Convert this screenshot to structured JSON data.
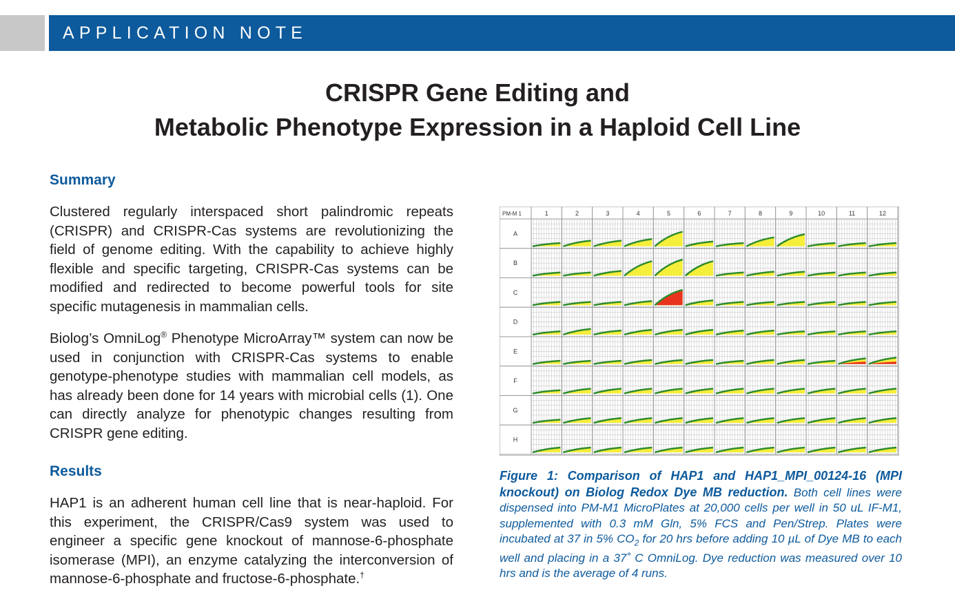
{
  "header": {
    "banner_label": "APPLICATION NOTE"
  },
  "title": {
    "line1": "CRISPR Gene Editing and",
    "line2": "Metabolic Phenotype Expression in a Haploid Cell Line"
  },
  "summary": {
    "heading": "Summary",
    "paragraph1": "Clustered regularly interspaced short palindromic repeats (CRISPR) and CRISPR-Cas systems   are revolutionizing the field of genome editing. With the capability to achieve highly flexible and specific targeting, CRISPR-Cas systems can be modified and redirected to become powerful tools for site specific mutagenesis in mammalian cells.",
    "paragraph2_before_sup": "Biolog’s OmniLog",
    "paragraph2_sup": "®",
    "paragraph2_after_sup": " Phenotype MicroArray™ system can now be used in conjunction with CRISPR-Cas systems to enable genotype-phenotype studies with mammalian cell models, as has already been done for 14 years with microbial cells (1). One can directly analyze for phenotypic changes resulting from CRISPR gene editing."
  },
  "results": {
    "heading": "Results",
    "paragraph1": "HAP1 is an adherent human cell line that is near-haploid. For this experiment, the CRISPR/Cas9 system was used to engineer a specific gene knockout of mannose-6-phosphate isomerase (MPI), an enzyme catalyzing the interconversion of mannose-6-phosphate and fructose-6-phosphate.",
    "paragraph1_sup": "†"
  },
  "figure": {
    "plate_label": "PM-M 1",
    "columns": [
      "1",
      "2",
      "3",
      "4",
      "5",
      "6",
      "7",
      "8",
      "9",
      "10",
      "11",
      "12"
    ],
    "rows": [
      "A",
      "B",
      "C",
      "D",
      "E",
      "F",
      "G",
      "H"
    ],
    "colors": {
      "yellow": "#f5ee3a",
      "green": "#2e8b2e",
      "red": "#e8341c",
      "grid": "#9a9a9a",
      "cell_bg": "#ffffff"
    },
    "kinetic_levels": [
      [
        0.2,
        0.35,
        0.35,
        0.45,
        0.9,
        0.3,
        0.2,
        0.55,
        0.75,
        0.2,
        0.2,
        0.2
      ],
      [
        0.2,
        0.2,
        0.3,
        0.9,
        1.0,
        0.9,
        0.2,
        0.25,
        0.25,
        0.2,
        0.2,
        0.2
      ],
      [
        0.2,
        0.2,
        0.2,
        0.25,
        0.95,
        0.3,
        0.2,
        0.2,
        0.2,
        0.2,
        0.2,
        0.2
      ],
      [
        0.2,
        0.35,
        0.25,
        0.3,
        0.3,
        0.3,
        0.25,
        0.25,
        0.2,
        0.2,
        0.2,
        0.2
      ],
      [
        0.2,
        0.2,
        0.2,
        0.25,
        0.25,
        0.25,
        0.2,
        0.25,
        0.25,
        0.2,
        0.35,
        0.4
      ],
      [
        0.2,
        0.3,
        0.3,
        0.3,
        0.3,
        0.3,
        0.3,
        0.3,
        0.3,
        0.3,
        0.3,
        0.3
      ],
      [
        0.2,
        0.3,
        0.3,
        0.3,
        0.3,
        0.3,
        0.3,
        0.3,
        0.3,
        0.3,
        0.3,
        0.3
      ],
      [
        0.3,
        0.3,
        0.3,
        0.3,
        0.3,
        0.3,
        0.3,
        0.3,
        0.3,
        0.3,
        0.3,
        0.3
      ]
    ],
    "red_wells": [
      {
        "row": "C",
        "col": "5",
        "level": 0.9
      },
      {
        "row": "E",
        "col": "11",
        "level": 0.15
      },
      {
        "row": "E",
        "col": "12",
        "level": 0.15
      }
    ],
    "caption_bold": "Figure 1: Comparison of HAP1 and HAP1_MPI_00124-16 (MPI knockout) on Biolog Redox Dye MB reduction.",
    "caption_part1": " Both cell lines were dispensed into PM-M1 MicroPlates at 20,000 cells per well in 50 uL IF-M1, supplemented with 0.3 mM Gln, 5% FCS and Pen/Strep.  Plates were incubated at 37 in 5% CO",
    "caption_sub": "2",
    "caption_part2": " for 20 hrs before adding 10 µL of Dye MB to each well and placing in a 37˚ C OmniLog.  Dye reduction was measured over 10 hrs and is the average of 4 runs."
  }
}
